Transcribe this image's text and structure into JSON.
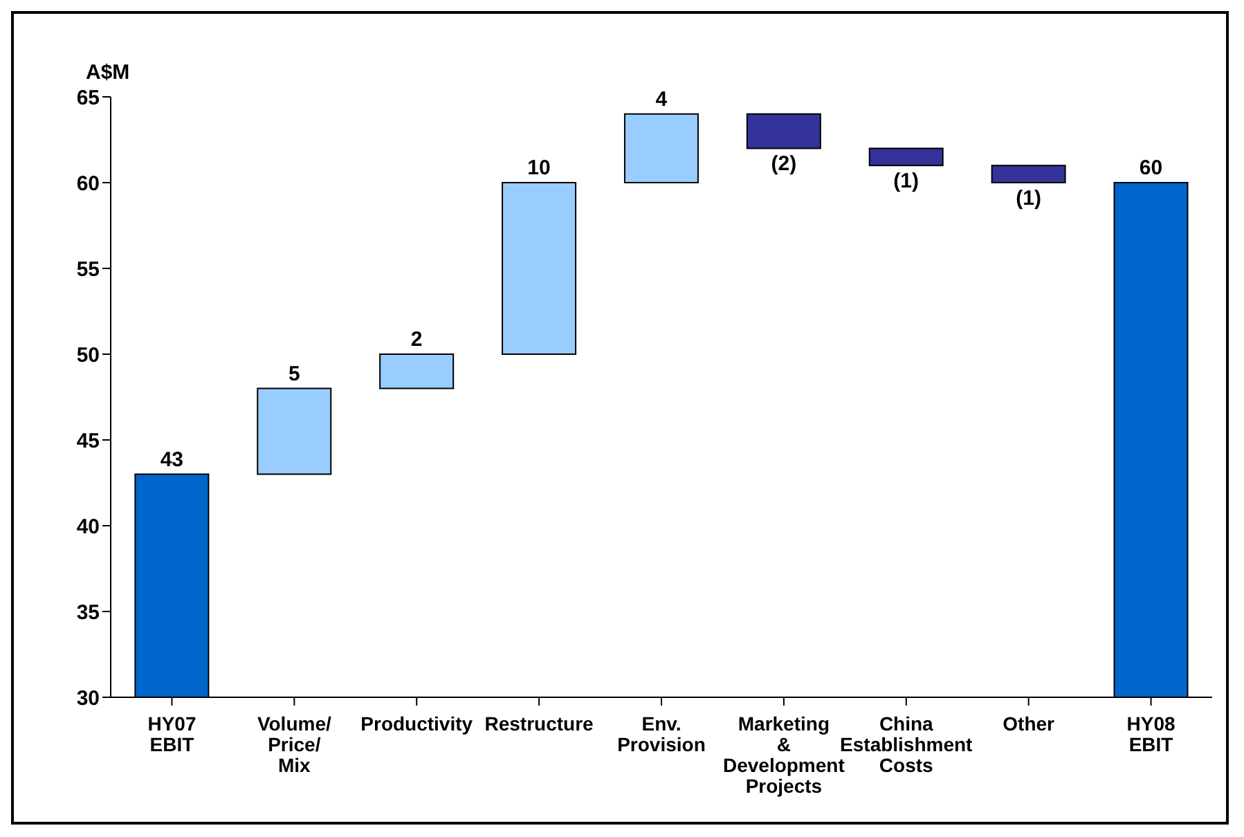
{
  "chart_data": {
    "type": "bar",
    "ylabel": "A$M",
    "categories": [
      "HY07 EBIT",
      "Volume/ Price/ Mix",
      "Productivity",
      "Restructure",
      "Env. Provision",
      "Marketing & Development Projects",
      "China Establishment Costs",
      "Other",
      "HY08 EBIT"
    ],
    "values": [
      43,
      5,
      2,
      10,
      4,
      -2,
      -1,
      -1,
      60
    ],
    "base": [
      null,
      43,
      48,
      50,
      60,
      64,
      62,
      61,
      null
    ],
    "colors": [
      "#0066cc",
      "#99ccff",
      "#99ccff",
      "#99ccff",
      "#99ccff",
      "#333399",
      "#333399",
      "#333399",
      "#0066cc"
    ],
    "value_labels": [
      "43",
      "5",
      "2",
      "10",
      "4",
      "(2)",
      "(1)",
      "(1)",
      "60"
    ],
    "ylim": [
      30,
      65
    ],
    "yticks": [
      30,
      35,
      40,
      45,
      50,
      55,
      60,
      65
    ],
    "grid": false
  }
}
